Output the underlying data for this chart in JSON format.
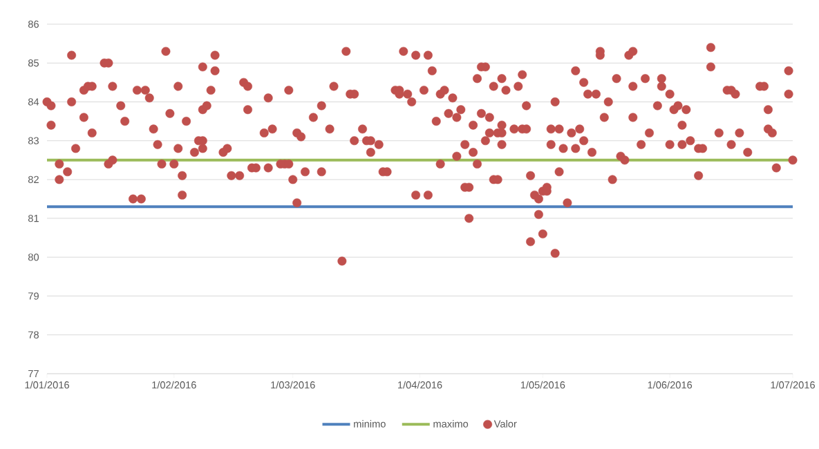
{
  "chart_data": {
    "type": "scatter",
    "xlim": [
      "2016-01-01",
      "2016-07-01"
    ],
    "xticks": [
      {
        "value": "2016-01-01",
        "label": "1/01/2016"
      },
      {
        "value": "2016-02-01",
        "label": "1/02/2016"
      },
      {
        "value": "2016-03-01",
        "label": "1/03/2016"
      },
      {
        "value": "2016-04-01",
        "label": "1/04/2016"
      },
      {
        "value": "2016-05-01",
        "label": "1/05/2016"
      },
      {
        "value": "2016-06-01",
        "label": "1/06/2016"
      },
      {
        "value": "2016-07-01",
        "label": "1/07/2016"
      }
    ],
    "ylim": [
      77,
      86
    ],
    "yticks": [
      77,
      78,
      79,
      80,
      81,
      82,
      83,
      84,
      85,
      86
    ],
    "grid": "y",
    "legend": "bottom",
    "series": [
      {
        "name": "minimo",
        "type": "line",
        "marker": "none",
        "color": "#4f81bd",
        "x": [
          "2016-01-01",
          "2016-07-01"
        ],
        "values": [
          81.3,
          81.3
        ]
      },
      {
        "name": "maximo",
        "type": "line",
        "marker": "none",
        "color": "#9bbb59",
        "x": [
          "2016-01-01",
          "2016-07-01"
        ],
        "values": [
          82.5,
          82.5
        ]
      },
      {
        "name": "Valor",
        "marker": "circle",
        "color": "#c0504d",
        "x": [
          "2016-01-01",
          "2016-01-02",
          "2016-01-02",
          "2016-01-04",
          "2016-01-04",
          "2016-01-06",
          "2016-01-07",
          "2016-01-07",
          "2016-01-08",
          "2016-01-10",
          "2016-01-10",
          "2016-01-11",
          "2016-01-12",
          "2016-01-12",
          "2016-01-15",
          "2016-01-16",
          "2016-01-16",
          "2016-01-17",
          "2016-01-17",
          "2016-01-19",
          "2016-01-20",
          "2016-01-22",
          "2016-01-23",
          "2016-01-24",
          "2016-01-25",
          "2016-01-26",
          "2016-01-27",
          "2016-01-28",
          "2016-01-29",
          "2016-01-30",
          "2016-01-31",
          "2016-02-01",
          "2016-02-02",
          "2016-02-02",
          "2016-02-03",
          "2016-02-03",
          "2016-02-04",
          "2016-02-06",
          "2016-02-07",
          "2016-02-08",
          "2016-02-08",
          "2016-02-08",
          "2016-02-08",
          "2016-02-09",
          "2016-02-10",
          "2016-02-11",
          "2016-02-11",
          "2016-02-13",
          "2016-02-14",
          "2016-02-15",
          "2016-02-17",
          "2016-02-18",
          "2016-02-19",
          "2016-02-19",
          "2016-02-20",
          "2016-02-21",
          "2016-02-23",
          "2016-02-24",
          "2016-02-24",
          "2016-02-25",
          "2016-02-27",
          "2016-02-28",
          "2016-02-29",
          "2016-02-29",
          "2016-03-01",
          "2016-03-02",
          "2016-03-02",
          "2016-03-03",
          "2016-03-04",
          "2016-03-06",
          "2016-03-08",
          "2016-03-08",
          "2016-03-10",
          "2016-03-11",
          "2016-03-13",
          "2016-03-14",
          "2016-03-15",
          "2016-03-16",
          "2016-03-16",
          "2016-03-18",
          "2016-03-19",
          "2016-03-20",
          "2016-03-20",
          "2016-03-22",
          "2016-03-23",
          "2016-03-24",
          "2016-03-26",
          "2016-03-27",
          "2016-03-27",
          "2016-03-28",
          "2016-03-29",
          "2016-03-30",
          "2016-03-31",
          "2016-03-31",
          "2016-04-02",
          "2016-04-03",
          "2016-04-03",
          "2016-04-04",
          "2016-04-05",
          "2016-04-06",
          "2016-04-06",
          "2016-04-07",
          "2016-04-08",
          "2016-04-09",
          "2016-04-10",
          "2016-04-10",
          "2016-04-11",
          "2016-04-12",
          "2016-04-12",
          "2016-04-13",
          "2016-04-13",
          "2016-04-14",
          "2016-04-14",
          "2016-04-15",
          "2016-04-15",
          "2016-04-16",
          "2016-04-16",
          "2016-04-17",
          "2016-04-17",
          "2016-04-18",
          "2016-04-18",
          "2016-04-19",
          "2016-04-19",
          "2016-04-20",
          "2016-04-20",
          "2016-04-21",
          "2016-04-21",
          "2016-04-21",
          "2016-04-21",
          "2016-04-22",
          "2016-04-24",
          "2016-04-25",
          "2016-04-26",
          "2016-04-26",
          "2016-04-27",
          "2016-04-27",
          "2016-04-28",
          "2016-04-28",
          "2016-04-29",
          "2016-04-30",
          "2016-04-30",
          "2016-05-01",
          "2016-05-01",
          "2016-05-02",
          "2016-05-02",
          "2016-05-03",
          "2016-05-03",
          "2016-05-04",
          "2016-05-04",
          "2016-05-05",
          "2016-05-05",
          "2016-05-06",
          "2016-05-07",
          "2016-05-08",
          "2016-05-09",
          "2016-05-09",
          "2016-05-10",
          "2016-05-11",
          "2016-05-11",
          "2016-05-12",
          "2016-05-13",
          "2016-05-14",
          "2016-05-15",
          "2016-05-15",
          "2016-05-16",
          "2016-05-17",
          "2016-05-18",
          "2016-05-19",
          "2016-05-20",
          "2016-05-21",
          "2016-05-22",
          "2016-05-23",
          "2016-05-23",
          "2016-05-23",
          "2016-05-25",
          "2016-05-26",
          "2016-05-27",
          "2016-05-29",
          "2016-05-30",
          "2016-05-30",
          "2016-06-01",
          "2016-06-01",
          "2016-06-02",
          "2016-06-03",
          "2016-06-04",
          "2016-06-04",
          "2016-06-05",
          "2016-06-06",
          "2016-06-08",
          "2016-06-08",
          "2016-06-09",
          "2016-06-11",
          "2016-06-11",
          "2016-06-13",
          "2016-06-15",
          "2016-06-16",
          "2016-06-16",
          "2016-06-17",
          "2016-06-18",
          "2016-06-20",
          "2016-06-23",
          "2016-06-24",
          "2016-06-25",
          "2016-06-25",
          "2016-06-26",
          "2016-06-27",
          "2016-06-30",
          "2016-06-30",
          "2016-07-01"
        ],
        "values": [
          84.0,
          83.9,
          83.4,
          82.4,
          82.0,
          82.2,
          85.2,
          84.0,
          82.8,
          84.3,
          83.6,
          84.4,
          84.4,
          83.2,
          85.0,
          85.0,
          82.4,
          82.5,
          84.4,
          83.9,
          83.5,
          81.5,
          84.3,
          81.5,
          84.3,
          84.1,
          83.3,
          82.9,
          82.4,
          85.3,
          83.7,
          82.4,
          84.4,
          82.8,
          82.1,
          81.6,
          83.5,
          82.7,
          83.0,
          82.8,
          83.0,
          84.9,
          83.8,
          83.9,
          84.3,
          85.2,
          84.8,
          82.7,
          82.8,
          82.1,
          82.1,
          84.5,
          84.4,
          83.8,
          82.3,
          82.3,
          83.2,
          84.1,
          82.3,
          83.3,
          82.4,
          82.4,
          84.3,
          82.4,
          82.0,
          81.4,
          83.2,
          83.1,
          82.2,
          83.6,
          83.9,
          82.2,
          83.3,
          84.4,
          79.9,
          85.3,
          84.2,
          84.2,
          83.0,
          83.3,
          83.0,
          82.7,
          83.0,
          82.9,
          82.2,
          82.2,
          84.3,
          84.3,
          84.2,
          85.3,
          84.2,
          84.0,
          85.2,
          81.6,
          84.3,
          85.2,
          81.6,
          84.8,
          83.5,
          82.4,
          84.2,
          84.3,
          83.7,
          84.1,
          83.6,
          82.6,
          83.8,
          82.9,
          81.8,
          81.8,
          81.0,
          83.4,
          82.7,
          82.4,
          84.6,
          84.9,
          83.7,
          84.9,
          83.0,
          83.6,
          83.2,
          82.0,
          84.4,
          82.0,
          83.2,
          84.6,
          83.2,
          83.4,
          82.9,
          84.3,
          83.3,
          84.4,
          84.7,
          83.3,
          83.9,
          83.3,
          82.1,
          80.4,
          81.6,
          81.5,
          81.1,
          80.6,
          81.7,
          81.7,
          81.8,
          83.3,
          82.9,
          84.0,
          80.1,
          83.3,
          82.2,
          82.8,
          81.4,
          83.2,
          84.8,
          82.8,
          83.3,
          84.5,
          83.0,
          84.2,
          82.7,
          84.2,
          85.3,
          85.2,
          83.6,
          84.0,
          82.0,
          84.6,
          82.6,
          82.5,
          85.2,
          85.3,
          84.4,
          83.6,
          82.9,
          84.6,
          83.2,
          83.9,
          84.6,
          84.4,
          84.2,
          82.9,
          83.8,
          83.9,
          83.4,
          82.9,
          83.8,
          83.0,
          82.1,
          82.8,
          82.8,
          85.4,
          84.9,
          83.2,
          84.3,
          82.9,
          84.3,
          84.2,
          83.2,
          82.7,
          84.4,
          84.4,
          83.8,
          83.3,
          83.2,
          82.3,
          84.8,
          84.2,
          82.5
        ]
      }
    ]
  }
}
